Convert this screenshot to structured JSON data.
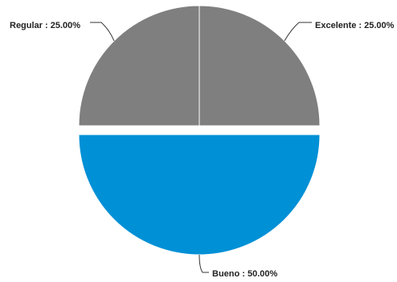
{
  "chart_data": {
    "type": "pie",
    "title": "",
    "legend": "none",
    "slices": [
      {
        "name": "Excelente",
        "label": "Excelente : 25.00%",
        "value": 25.0,
        "color": "#7f7f7f",
        "exploded": false
      },
      {
        "name": "Bueno",
        "label": "Bueno : 50.00%",
        "value": 50.0,
        "color": "#0090d6",
        "exploded": true
      },
      {
        "name": "Regular",
        "label": "Regular : 25.00%",
        "value": 25.0,
        "color": "#7f7f7f",
        "exploded": false
      }
    ]
  }
}
